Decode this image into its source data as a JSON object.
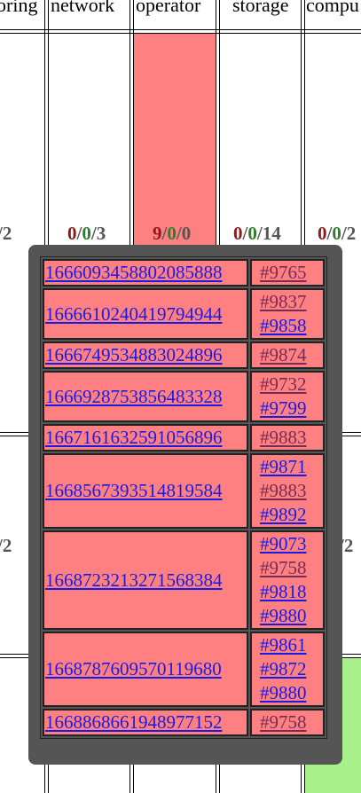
{
  "columns": [
    {
      "name": "oring",
      "counts": {
        "red": "",
        "green": "",
        "rest": "/2"
      }
    },
    {
      "name": "network",
      "counts": {
        "red": "0",
        "green": "0",
        "rest": "3"
      }
    },
    {
      "name": "operator",
      "counts": {
        "red": "9",
        "green": "0",
        "rest": "0"
      }
    },
    {
      "name": "storage",
      "counts": {
        "red": "0",
        "green": "0",
        "rest": "14"
      }
    },
    {
      "name": "compu",
      "counts": {
        "red": "0",
        "green": "0",
        "rest": "2"
      }
    }
  ],
  "second_row_counts": {
    "left": "/2",
    "right": "/2"
  },
  "colors": {
    "failure": "#ff8080",
    "success": "#a8f08a",
    "popup_bg": "#555555",
    "link": "#1a1ae6",
    "visited_link": "#7a2a55"
  },
  "popup": {
    "rows": [
      {
        "id": "1666093458802085888",
        "prs": [
          {
            "label": "#9765",
            "visited": true
          }
        ]
      },
      {
        "id": "1666610240419794944",
        "prs": [
          {
            "label": "#9837",
            "visited": true
          },
          {
            "label": "#9858",
            "visited": false
          }
        ]
      },
      {
        "id": "1666749534883024896",
        "prs": [
          {
            "label": "#9874",
            "visited": true
          }
        ]
      },
      {
        "id": "1666928753856483328",
        "prs": [
          {
            "label": "#9732",
            "visited": true
          },
          {
            "label": "#9799",
            "visited": false
          }
        ]
      },
      {
        "id": "1667161632591056896",
        "prs": [
          {
            "label": "#9883",
            "visited": true
          }
        ]
      },
      {
        "id": "1668567393514819584",
        "prs": [
          {
            "label": "#9871",
            "visited": false
          },
          {
            "label": "#9883",
            "visited": true
          },
          {
            "label": "#9892",
            "visited": false
          }
        ]
      },
      {
        "id": "1668723213271568384",
        "prs": [
          {
            "label": "#9073",
            "visited": false
          },
          {
            "label": "#9758",
            "visited": true
          },
          {
            "label": "#9818",
            "visited": false
          },
          {
            "label": "#9880",
            "visited": false
          }
        ]
      },
      {
        "id": "1668787609570119680",
        "prs": [
          {
            "label": "#9861",
            "visited": false
          },
          {
            "label": "#9872",
            "visited": false
          },
          {
            "label": "#9880",
            "visited": false
          }
        ]
      },
      {
        "id": "1668868661948977152",
        "prs": [
          {
            "label": "#9758",
            "visited": true
          }
        ]
      }
    ]
  }
}
